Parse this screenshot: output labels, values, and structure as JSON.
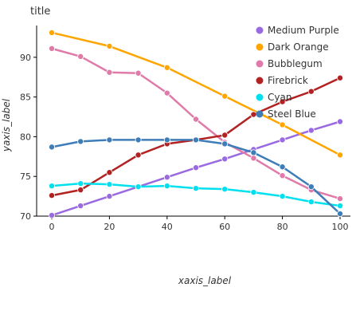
{
  "chart_data": {
    "type": "line",
    "title": "title",
    "xlabel": "xaxis_label",
    "ylabel": "yaxis_label",
    "xlim": [
      -5,
      105
    ],
    "ylim": [
      70,
      94
    ],
    "x_ticks": [
      0,
      20,
      40,
      60,
      80,
      100
    ],
    "y_ticks": [
      70,
      75,
      80,
      85,
      90
    ],
    "grid": false,
    "legend_position": "right",
    "series": [
      {
        "name": "Medium Purple",
        "color": "#9A6AE0",
        "x": [
          0,
          10,
          20,
          30,
          40,
          50,
          60,
          70,
          80,
          90,
          100
        ],
        "y": [
          70.1,
          71.3,
          72.5,
          73.7,
          74.9,
          76.1,
          77.2,
          78.4,
          79.6,
          80.8,
          81.9
        ]
      },
      {
        "name": "Dark Orange",
        "color": "#FFA500",
        "x": [
          0,
          20,
          40,
          60,
          80,
          100
        ],
        "y": [
          93.1,
          91.4,
          88.7,
          85.1,
          81.5,
          77.7
        ]
      },
      {
        "name": "Bubblegum",
        "color": "#E07AA8",
        "x": [
          0,
          10,
          20,
          30,
          40,
          50,
          60,
          70,
          80,
          90,
          100
        ],
        "y": [
          91.1,
          90.1,
          88.1,
          88.0,
          85.5,
          82.2,
          79.3,
          77.3,
          75.1,
          73.3,
          72.2
        ]
      },
      {
        "name": "Firebrick",
        "color": "#B22222",
        "x": [
          0,
          10,
          20,
          30,
          40,
          50,
          60,
          70,
          80,
          90,
          100
        ],
        "y": [
          72.6,
          73.3,
          75.5,
          77.7,
          79.1,
          79.6,
          80.2,
          82.8,
          84.4,
          85.7,
          87.4
        ]
      },
      {
        "name": "Cyan",
        "color": "#00E0EE",
        "x": [
          0,
          10,
          20,
          30,
          40,
          50,
          60,
          70,
          80,
          90,
          100
        ],
        "y": [
          73.8,
          74.1,
          74.0,
          73.7,
          73.8,
          73.5,
          73.4,
          73.0,
          72.5,
          71.8,
          71.3
        ]
      },
      {
        "name": "Steel Blue",
        "color": "#3E7DB8",
        "x": [
          0,
          10,
          20,
          30,
          40,
          50,
          60,
          70,
          80,
          90,
          100
        ],
        "y": [
          78.7,
          79.4,
          79.6,
          79.6,
          79.6,
          79.6,
          79.1,
          78.0,
          76.2,
          73.7,
          70.3
        ]
      }
    ]
  }
}
